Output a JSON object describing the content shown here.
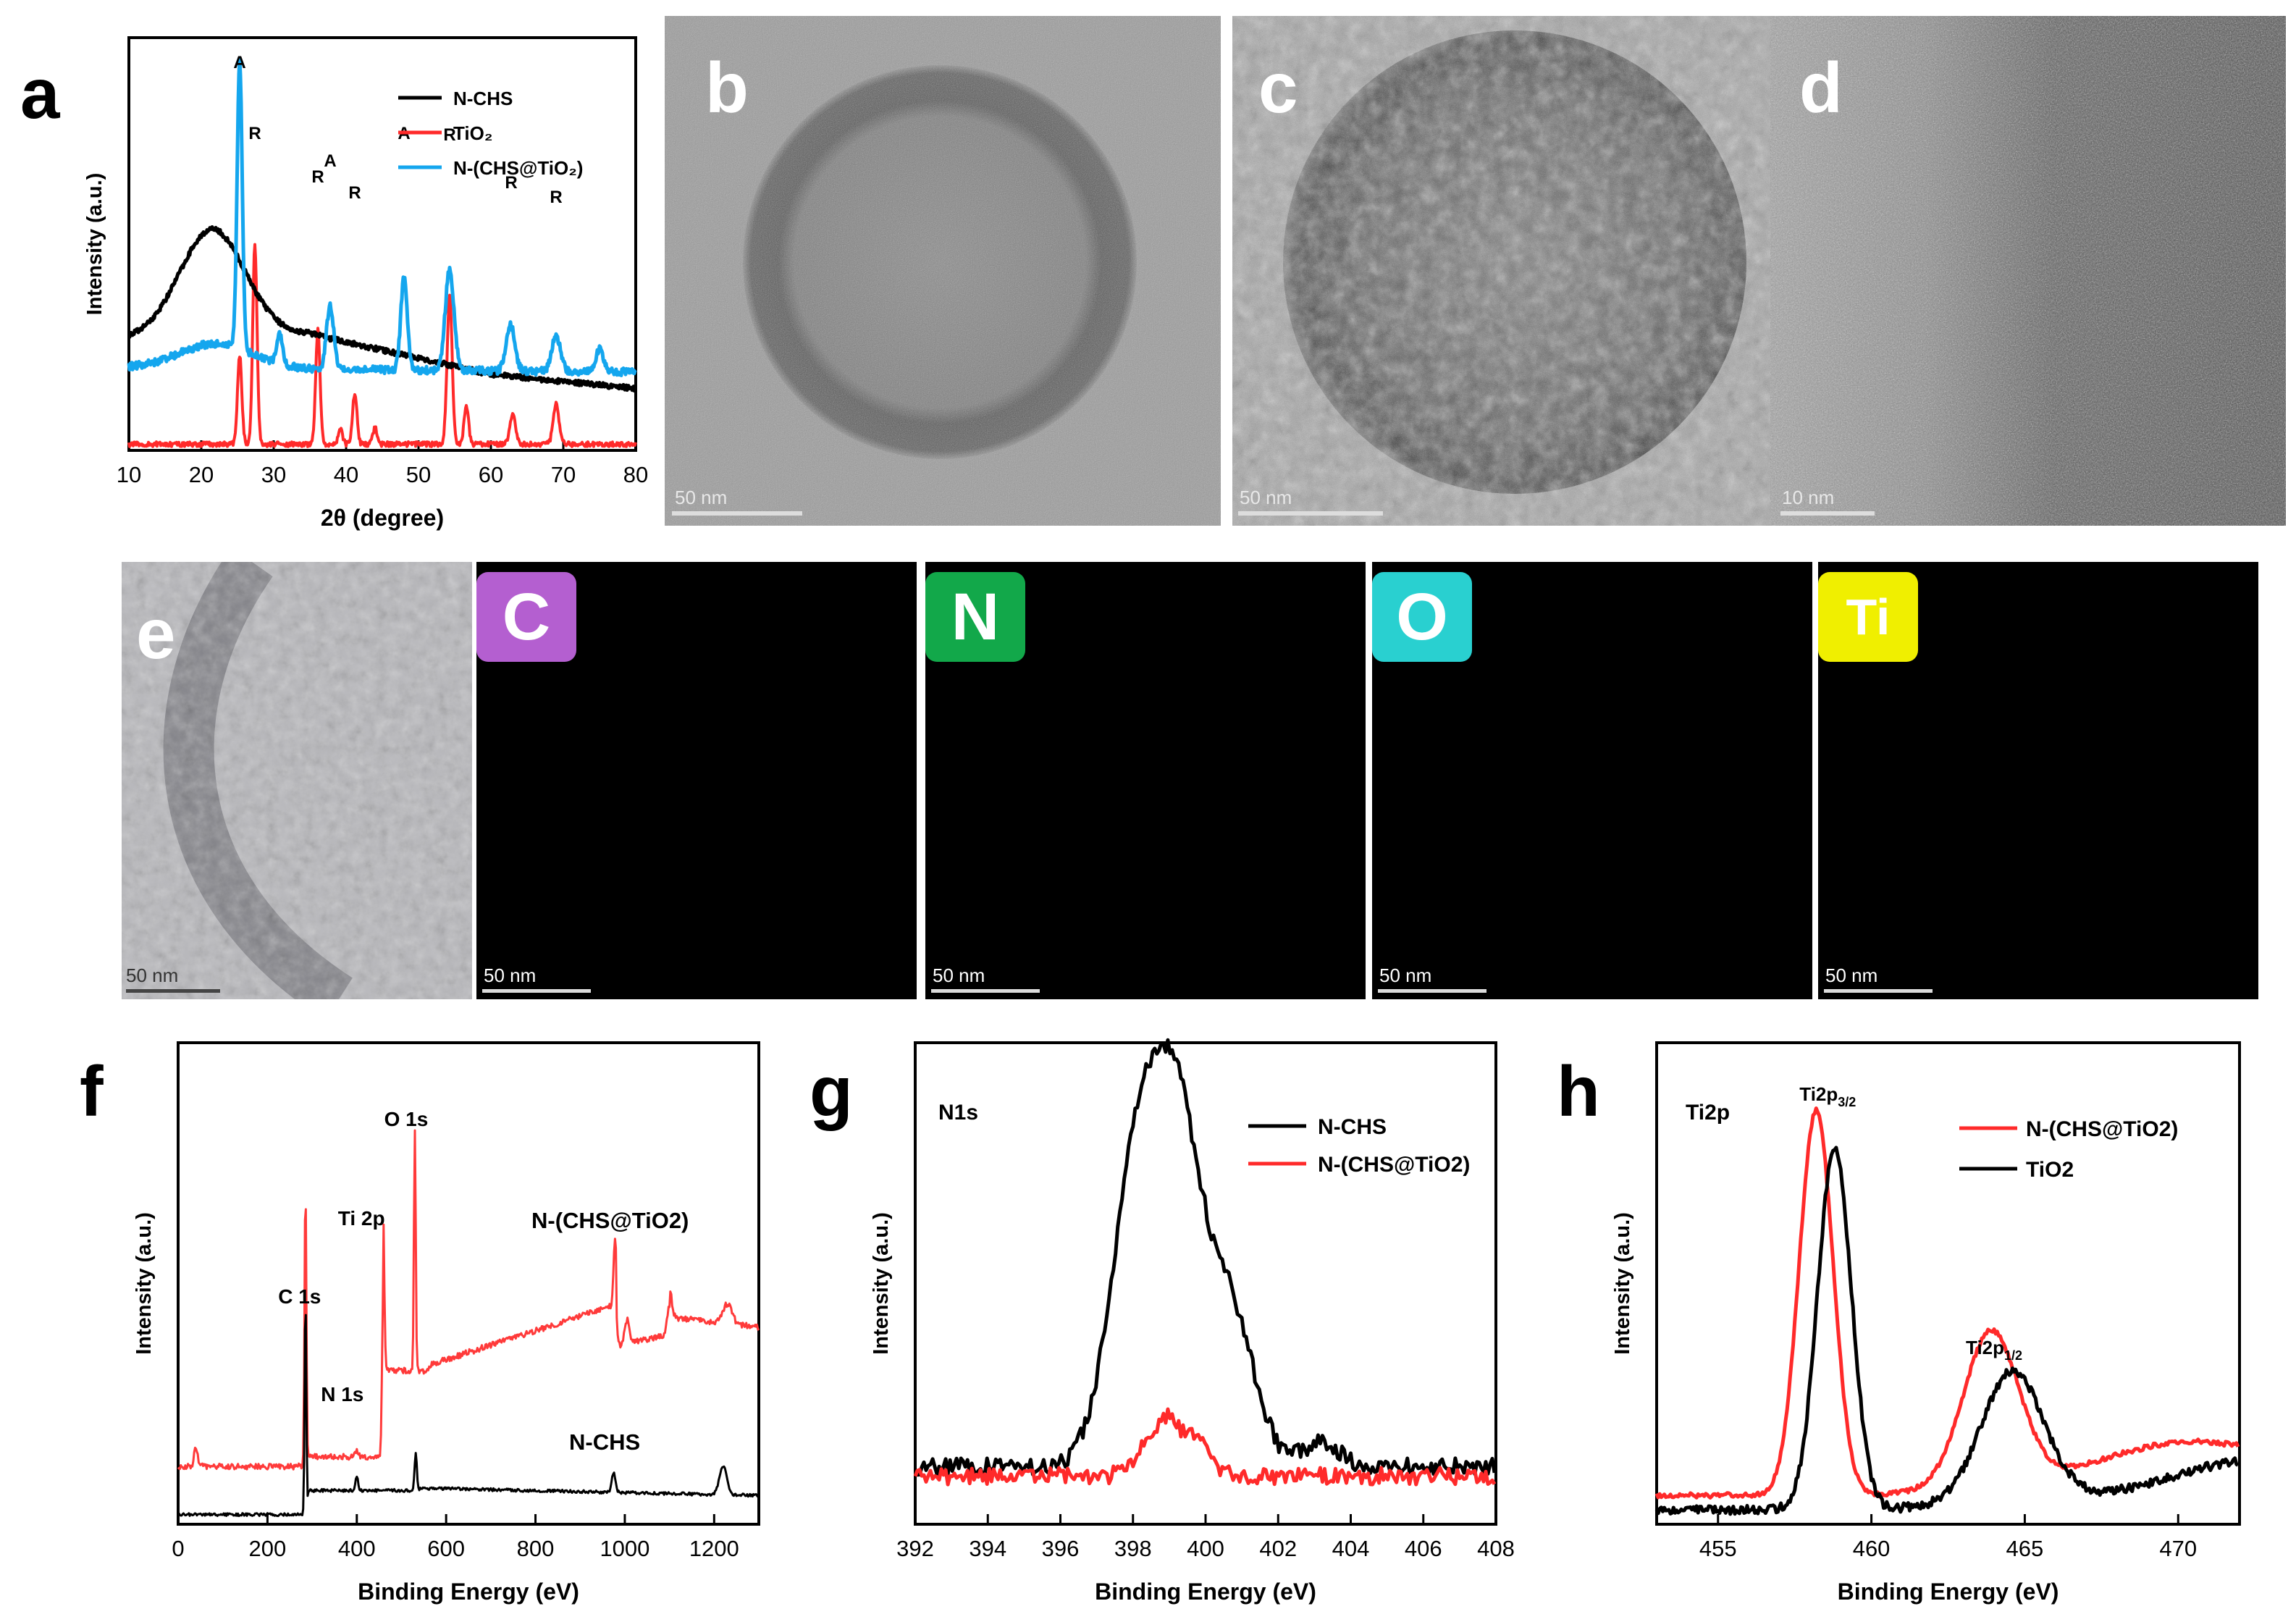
{
  "panels": {
    "a": "a",
    "b": "b",
    "c": "c",
    "d": "d",
    "e": "e",
    "f": "f",
    "g": "g",
    "h": "h"
  },
  "scale_bars": {
    "b": "50 nm",
    "c": "50 nm",
    "d": "10 nm",
    "e": "50 nm",
    "C": "50 nm",
    "N": "50 nm",
    "O": "50 nm",
    "Ti": "50 nm"
  },
  "eds_maps": [
    {
      "element": "C",
      "color": "#b45fd0"
    },
    {
      "element": "N",
      "color": "#12a84a"
    },
    {
      "element": "O",
      "color": "#29d0d0"
    },
    {
      "element": "Ti",
      "color": "#f0ef00"
    }
  ],
  "chart_data": [
    {
      "panel": "a",
      "type": "line",
      "xlabel": "2θ (degree)",
      "ylabel": "Intensity (a.u.)",
      "xlim": [
        10,
        80
      ],
      "xticks": [
        10,
        20,
        30,
        40,
        50,
        60,
        70,
        80
      ],
      "legend": [
        "N-CHS",
        "TiO₂",
        "N-(CHS@TiO₂)"
      ],
      "legend_position": "top-right",
      "series": [
        {
          "name": "N-CHS",
          "color": "#000000"
        },
        {
          "name": "TiO₂",
          "color": "#ff2a2a"
        },
        {
          "name": "N-(CHS@TiO₂)",
          "color": "#14a6ee"
        }
      ],
      "annotations": [
        {
          "label": "A",
          "x": 25.3
        },
        {
          "label": "R",
          "x": 27.4
        },
        {
          "label": "R",
          "x": 36.1
        },
        {
          "label": "A",
          "x": 37.8
        },
        {
          "label": "R",
          "x": 41.2
        },
        {
          "label": "A",
          "x": 48.0
        },
        {
          "label": "R",
          "x": 54.3
        },
        {
          "label": "R",
          "x": 62.8
        },
        {
          "label": "R",
          "x": 69.0
        }
      ]
    },
    {
      "panel": "f",
      "type": "line",
      "xlabel": "Binding Energy (eV)",
      "ylabel": "Intensity (a.u.)",
      "xlim": [
        0,
        1300
      ],
      "xticks": [
        0,
        200,
        400,
        600,
        800,
        1000,
        1200
      ],
      "series": [
        {
          "name": "N-(CHS@TiO2)",
          "color": "#ff3a3a"
        },
        {
          "name": "N-CHS",
          "color": "#000000"
        }
      ],
      "annotations": [
        {
          "label": "C 1s",
          "x": 285
        },
        {
          "label": "N 1s",
          "x": 400
        },
        {
          "label": "Ti 2p",
          "x": 459
        },
        {
          "label": "O 1s",
          "x": 530
        }
      ]
    },
    {
      "panel": "g",
      "type": "line",
      "title": "N1s",
      "xlabel": "Binding Energy (eV)",
      "ylabel": "Intensity (a.u.)",
      "xlim": [
        392,
        408
      ],
      "xticks": [
        392,
        394,
        396,
        398,
        400,
        402,
        404,
        406,
        408
      ],
      "legend": [
        "N-CHS",
        "N-(CHS@TiO2)"
      ],
      "legend_position": "top-right",
      "series": [
        {
          "name": "N-CHS",
          "color": "#000000"
        },
        {
          "name": "N-(CHS@TiO2)",
          "color": "#ff2a2a"
        }
      ]
    },
    {
      "panel": "h",
      "type": "line",
      "title": "Ti2p",
      "xlabel": "Binding Energy (eV)",
      "ylabel": "Intensity (a.u.)",
      "xlim": [
        453,
        472
      ],
      "xticks": [
        455,
        460,
        465,
        470
      ],
      "legend": [
        "N-(CHS@TiO2)",
        "TiO2"
      ],
      "legend_position": "top-right",
      "series": [
        {
          "name": "N-(CHS@TiO2)",
          "color": "#ff2a2a"
        },
        {
          "name": "TiO2",
          "color": "#000000"
        }
      ],
      "annotations": [
        {
          "label": "Ti2p3/2",
          "x": 458.2
        },
        {
          "label": "Ti2p1/2",
          "x": 464.0
        }
      ]
    }
  ]
}
